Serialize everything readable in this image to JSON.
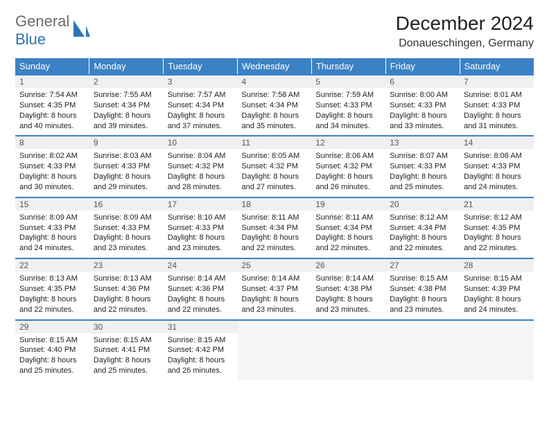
{
  "brand": {
    "part1": "General",
    "part2": "Blue"
  },
  "title": "December 2024",
  "location": "Donaueschingen, Germany",
  "colors": {
    "header_bg": "#3b82c4",
    "header_text": "#ffffff",
    "row_separator": "#3b82c4",
    "daynum_bg": "#eef0f2",
    "body_bg": "#ffffff",
    "brand_grey": "#6b6b6b",
    "brand_blue": "#2f74b5"
  },
  "fonts": {
    "title_size": 28,
    "location_size": 16,
    "header_size": 13,
    "daynum_size": 12,
    "body_size": 11
  },
  "columns": [
    "Sunday",
    "Monday",
    "Tuesday",
    "Wednesday",
    "Thursday",
    "Friday",
    "Saturday"
  ],
  "weeks": [
    [
      {
        "day": "1",
        "sunrise": "7:54 AM",
        "sunset": "4:35 PM",
        "daylight": "8 hours and 40 minutes."
      },
      {
        "day": "2",
        "sunrise": "7:55 AM",
        "sunset": "4:34 PM",
        "daylight": "8 hours and 39 minutes."
      },
      {
        "day": "3",
        "sunrise": "7:57 AM",
        "sunset": "4:34 PM",
        "daylight": "8 hours and 37 minutes."
      },
      {
        "day": "4",
        "sunrise": "7:58 AM",
        "sunset": "4:34 PM",
        "daylight": "8 hours and 35 minutes."
      },
      {
        "day": "5",
        "sunrise": "7:59 AM",
        "sunset": "4:33 PM",
        "daylight": "8 hours and 34 minutes."
      },
      {
        "day": "6",
        "sunrise": "8:00 AM",
        "sunset": "4:33 PM",
        "daylight": "8 hours and 33 minutes."
      },
      {
        "day": "7",
        "sunrise": "8:01 AM",
        "sunset": "4:33 PM",
        "daylight": "8 hours and 31 minutes."
      }
    ],
    [
      {
        "day": "8",
        "sunrise": "8:02 AM",
        "sunset": "4:33 PM",
        "daylight": "8 hours and 30 minutes."
      },
      {
        "day": "9",
        "sunrise": "8:03 AM",
        "sunset": "4:33 PM",
        "daylight": "8 hours and 29 minutes."
      },
      {
        "day": "10",
        "sunrise": "8:04 AM",
        "sunset": "4:32 PM",
        "daylight": "8 hours and 28 minutes."
      },
      {
        "day": "11",
        "sunrise": "8:05 AM",
        "sunset": "4:32 PM",
        "daylight": "8 hours and 27 minutes."
      },
      {
        "day": "12",
        "sunrise": "8:06 AM",
        "sunset": "4:32 PM",
        "daylight": "8 hours and 26 minutes."
      },
      {
        "day": "13",
        "sunrise": "8:07 AM",
        "sunset": "4:33 PM",
        "daylight": "8 hours and 25 minutes."
      },
      {
        "day": "14",
        "sunrise": "8:08 AM",
        "sunset": "4:33 PM",
        "daylight": "8 hours and 24 minutes."
      }
    ],
    [
      {
        "day": "15",
        "sunrise": "8:09 AM",
        "sunset": "4:33 PM",
        "daylight": "8 hours and 24 minutes."
      },
      {
        "day": "16",
        "sunrise": "8:09 AM",
        "sunset": "4:33 PM",
        "daylight": "8 hours and 23 minutes."
      },
      {
        "day": "17",
        "sunrise": "8:10 AM",
        "sunset": "4:33 PM",
        "daylight": "8 hours and 23 minutes."
      },
      {
        "day": "18",
        "sunrise": "8:11 AM",
        "sunset": "4:34 PM",
        "daylight": "8 hours and 22 minutes."
      },
      {
        "day": "19",
        "sunrise": "8:11 AM",
        "sunset": "4:34 PM",
        "daylight": "8 hours and 22 minutes."
      },
      {
        "day": "20",
        "sunrise": "8:12 AM",
        "sunset": "4:34 PM",
        "daylight": "8 hours and 22 minutes."
      },
      {
        "day": "21",
        "sunrise": "8:12 AM",
        "sunset": "4:35 PM",
        "daylight": "8 hours and 22 minutes."
      }
    ],
    [
      {
        "day": "22",
        "sunrise": "8:13 AM",
        "sunset": "4:35 PM",
        "daylight": "8 hours and 22 minutes."
      },
      {
        "day": "23",
        "sunrise": "8:13 AM",
        "sunset": "4:36 PM",
        "daylight": "8 hours and 22 minutes."
      },
      {
        "day": "24",
        "sunrise": "8:14 AM",
        "sunset": "4:36 PM",
        "daylight": "8 hours and 22 minutes."
      },
      {
        "day": "25",
        "sunrise": "8:14 AM",
        "sunset": "4:37 PM",
        "daylight": "8 hours and 23 minutes."
      },
      {
        "day": "26",
        "sunrise": "8:14 AM",
        "sunset": "4:38 PM",
        "daylight": "8 hours and 23 minutes."
      },
      {
        "day": "27",
        "sunrise": "8:15 AM",
        "sunset": "4:38 PM",
        "daylight": "8 hours and 23 minutes."
      },
      {
        "day": "28",
        "sunrise": "8:15 AM",
        "sunset": "4:39 PM",
        "daylight": "8 hours and 24 minutes."
      }
    ],
    [
      {
        "day": "29",
        "sunrise": "8:15 AM",
        "sunset": "4:40 PM",
        "daylight": "8 hours and 25 minutes."
      },
      {
        "day": "30",
        "sunrise": "8:15 AM",
        "sunset": "4:41 PM",
        "daylight": "8 hours and 25 minutes."
      },
      {
        "day": "31",
        "sunrise": "8:15 AM",
        "sunset": "4:42 PM",
        "daylight": "8 hours and 26 minutes."
      },
      null,
      null,
      null,
      null
    ]
  ],
  "labels": {
    "sunrise": "Sunrise:",
    "sunset": "Sunset:",
    "daylight": "Daylight:"
  }
}
